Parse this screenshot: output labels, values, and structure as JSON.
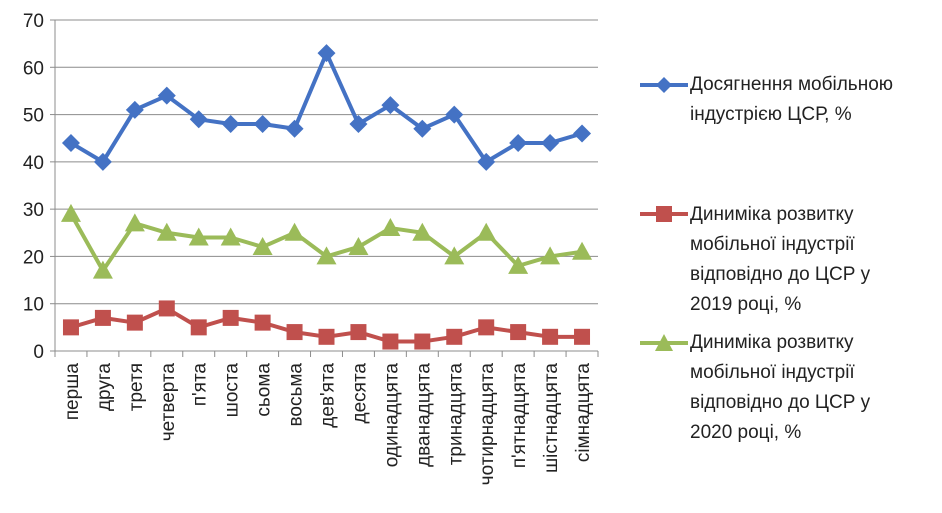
{
  "chart_data": {
    "type": "line",
    "categories": [
      "перша",
      "друга",
      "третя",
      "четверта",
      "п'ята",
      "шоста",
      "сьома",
      "восьма",
      "дев'ята",
      "десята",
      "одинадцята",
      "дванадцята",
      "тринадцята",
      "чотирнадцята",
      "п'ятнадцята",
      "шістнадцята",
      "сімнадцята"
    ],
    "series": [
      {
        "name": "Досягнення  мобільною індустрією ЦСР, %",
        "color": "#4472C4",
        "marker": "diamond",
        "values": [
          44,
          40,
          51,
          54,
          49,
          48,
          48,
          47,
          63,
          48,
          52,
          47,
          50,
          40,
          44,
          44,
          46
        ]
      },
      {
        "name": "Диниміка розвитку мобільної індустрії відповідно до ЦСР у 2019 році, %",
        "color": "#C0504D",
        "marker": "square",
        "values": [
          5,
          7,
          6,
          9,
          5,
          7,
          6,
          4,
          3,
          4,
          2,
          2,
          3,
          5,
          4,
          3,
          3
        ]
      },
      {
        "name": "Диниміка розвитку мобільної індустрії відповідно до ЦСР у 2020 році, %",
        "color": "#9BBB59",
        "marker": "triangle",
        "values": [
          29,
          17,
          27,
          25,
          24,
          24,
          22,
          25,
          20,
          22,
          26,
          25,
          20,
          25,
          18,
          20,
          21
        ]
      }
    ],
    "ylim": [
      0,
      70
    ],
    "yticks": [
      0,
      10,
      20,
      30,
      40,
      50,
      60,
      70
    ],
    "grid": true,
    "legend": "right"
  },
  "legend": {
    "s0": "Досягнення  мобільною\nіндустрією ЦСР, %",
    "s1": "Диниміка розвитку\nмобільної індустрії\nвідповідно до ЦСР у\n2019 році, %",
    "s2": "Диниміка розвитку\nмобільної індустрії\nвідповідно до ЦСР у\n2020 році, %"
  }
}
